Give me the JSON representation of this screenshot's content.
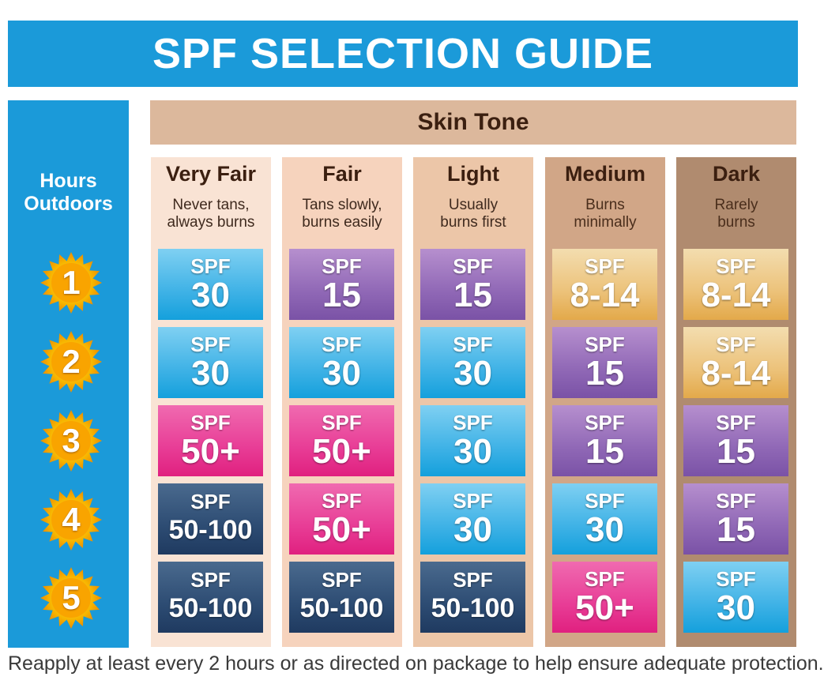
{
  "title": "SPF SELECTION GUIDE",
  "hours_label": "Hours\nOutdoors",
  "skin_tone_header": "Skin Tone",
  "hours": [
    "1",
    "2",
    "3",
    "4",
    "5"
  ],
  "spf_label": "SPF",
  "colors": {
    "title_bar": "#1b9ad9",
    "skin_header": "#dcb89c",
    "blue": "#3fb2e6",
    "purple": "#9068b6",
    "pink": "#e83d96",
    "navy": "#2d4c73",
    "gold": "#ecc27a",
    "sun": "#f7b500"
  },
  "icons": {
    "hour_marker": "sun-icon"
  },
  "tones": [
    {
      "name": "Very Fair",
      "desc": "Never tans,\nalways burns",
      "bg": "#f9e3d4",
      "spf": [
        {
          "value": "30",
          "color": "blue"
        },
        {
          "value": "30",
          "color": "blue"
        },
        {
          "value": "50+",
          "color": "pink"
        },
        {
          "value": "50-100",
          "color": "navy"
        },
        {
          "value": "50-100",
          "color": "navy"
        }
      ]
    },
    {
      "name": "Fair",
      "desc": "Tans slowly,\nburns easily",
      "bg": "#f6d3bd",
      "spf": [
        {
          "value": "15",
          "color": "purple"
        },
        {
          "value": "30",
          "color": "blue"
        },
        {
          "value": "50+",
          "color": "pink"
        },
        {
          "value": "50+",
          "color": "pink"
        },
        {
          "value": "50-100",
          "color": "navy"
        }
      ]
    },
    {
      "name": "Light",
      "desc": "Usually\nburns first",
      "bg": "#ecc6a8",
      "spf": [
        {
          "value": "15",
          "color": "purple"
        },
        {
          "value": "30",
          "color": "blue"
        },
        {
          "value": "30",
          "color": "blue"
        },
        {
          "value": "30",
          "color": "blue"
        },
        {
          "value": "50-100",
          "color": "navy"
        }
      ]
    },
    {
      "name": "Medium",
      "desc": "Burns\nminimally",
      "bg": "#d1a687",
      "spf": [
        {
          "value": "8-14",
          "color": "gold"
        },
        {
          "value": "15",
          "color": "purple"
        },
        {
          "value": "15",
          "color": "purple"
        },
        {
          "value": "30",
          "color": "blue"
        },
        {
          "value": "50+",
          "color": "pink"
        }
      ]
    },
    {
      "name": "Dark",
      "desc": "Rarely\nburns",
      "bg": "#b08b6f",
      "spf": [
        {
          "value": "8-14",
          "color": "gold"
        },
        {
          "value": "8-14",
          "color": "gold"
        },
        {
          "value": "15",
          "color": "purple"
        },
        {
          "value": "15",
          "color": "purple"
        },
        {
          "value": "30",
          "color": "blue"
        }
      ]
    }
  ],
  "footer": "Reapply at least every 2 hours or as directed on package to help ensure adequate protection."
}
